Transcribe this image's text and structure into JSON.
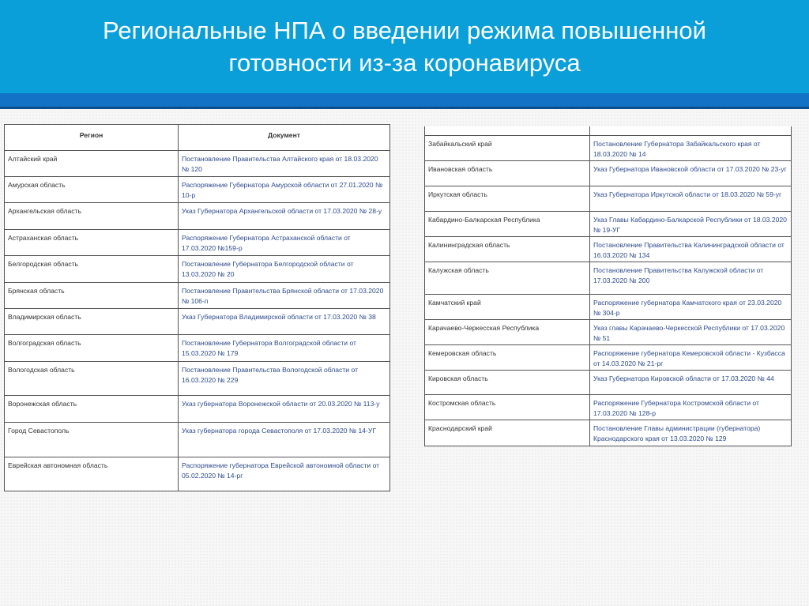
{
  "slide": {
    "title_line1": "Региональные НПА о введении режима повышенной",
    "title_line2": "готовности из-за коронавируса",
    "header_color": "#0a9fd8",
    "band_color": "#1372c6",
    "link_color": "#2e4a8c"
  },
  "left_table": {
    "headers": [
      "Регион",
      "Документ"
    ],
    "rows": [
      {
        "region": "Алтайский край",
        "doc": "Постановление Правительства Алтайского края от 18.03.2020 № 120"
      },
      {
        "region": "Амурская область",
        "doc": "Распоряжение Губернатора Амурской области от 27.01.2020 № 10-р"
      },
      {
        "region": "Архангельская область",
        "doc": "Указ Губернатора Архангельской области от 17.03.2020 № 28-у"
      },
      {
        "region": "Астраханская область",
        "doc": "Распоряжение Губернатора Астраханской области от 17.03.2020 №159-р"
      },
      {
        "region": "Белгородская область",
        "doc": "Постановление Губернатора Белгородской области от 13.03.2020 № 20"
      },
      {
        "region": "Брянская область",
        "doc": "Постановление Правительства Брянской области от 17.03.2020 № 106-п"
      },
      {
        "region": "Владимирская область",
        "doc": "Указ Губернатора Владимирской области от 17.03.2020 № 38"
      },
      {
        "region": "Волгоградская область",
        "doc": "Постановление Губернатора Волгоградской области от 15.03.2020 № 179"
      },
      {
        "region": "Вологодская область",
        "doc": "Постановление Правительства Вологодской области от 16.03.2020 № 229"
      },
      {
        "region": "Воронежская область",
        "doc": "Указ губернатора Воронежской области от 20.03.2020 № 113-у"
      },
      {
        "region": "Город Севастополь",
        "doc": "Указ губернатора города Севастополя от 17.03.2020 № 14-УГ"
      },
      {
        "region": "Еврейская автономная область",
        "doc": "Распоряжение губернатора Еврейской автономной области от 05.02.2020 № 14-рг"
      }
    ]
  },
  "right_table": {
    "rows": [
      {
        "region": "Забайкальский край",
        "doc": "Постановление Губернатора Забайкальского края от 18.03.2020 № 14"
      },
      {
        "region": "Ивановская область",
        "doc": "Указ Губернатора Ивановской области от 17.03.2020 № 23-уг"
      },
      {
        "region": "Иркутская область",
        "doc": "Указ Губернатора Иркутской области от 18.03.2020 № 59-уг"
      },
      {
        "region": "Кабардино-Балкарская Республика",
        "doc": "Указ Главы Кабардино-Балкарской Республики от 18.03.2020 № 19-УГ"
      },
      {
        "region": "Калининградская область",
        "doc": "Постановление Правительства Калининградской области от 16.03.2020 № 134"
      },
      {
        "region": "Калужская область",
        "doc": "Постановление Правительства Калужской области от 17.03.2020 № 200"
      },
      {
        "region": "Камчатский край",
        "doc": "Распоряжение губернатора Камчатского края от 23.03.2020 № 304-р"
      },
      {
        "region": "Карачаево-Черкесская Республика",
        "doc": "Указ главы Карачаево-Черкесской Республики от 17.03.2020 № 51"
      },
      {
        "region": "Кемеровская область",
        "doc": "Распоряжение губернатора Кемеровской области - Кузбасса от 14.03.2020 № 21-рг"
      },
      {
        "region": "Кировская область",
        "doc": "Указ Губернатора Кировской области от 17.03.2020 № 44"
      },
      {
        "region": "Костромская область",
        "doc": "Распоряжение Губернатора Костромской области от 17.03.2020 № 128-р"
      },
      {
        "region": "Краснодарский край",
        "doc": "Постановление Главы администрации (губернатора) Краснодарского края от 13.03.2020 № 129"
      }
    ]
  }
}
